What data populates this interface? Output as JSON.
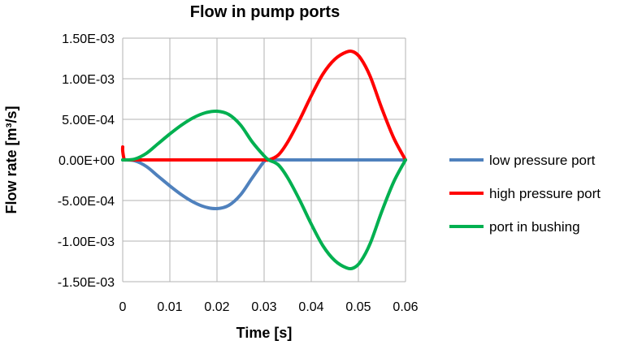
{
  "chart_data": {
    "type": "line",
    "title": "Flow in pump ports",
    "xlabel": "Time [s]",
    "ylabel": "Flow rate [m³/s]",
    "xlim": [
      0,
      0.06
    ],
    "ylim": [
      -0.0015,
      0.0015
    ],
    "x_ticks": [
      0,
      0.01,
      0.02,
      0.03,
      0.04,
      0.05,
      0.06
    ],
    "x_tick_labels": [
      "0",
      "0.01",
      "0.02",
      "0.03",
      "0.04",
      "0.05",
      "0.06"
    ],
    "y_ticks": [
      0.0015,
      0.001,
      0.0005,
      0,
      -0.0005,
      -0.001,
      -0.0015
    ],
    "y_tick_labels": [
      "1.50E-03",
      "1.00E-03",
      "5.00E-04",
      "0.00E+00",
      "-5.00E-04",
      "-1.00E-03",
      "-1.50E-03"
    ],
    "grid": true,
    "legend_position": "right",
    "series": [
      {
        "name": "low pressure port",
        "color": "#4f81bd",
        "x": [
          0,
          0.0025,
          0.005,
          0.0075,
          0.01,
          0.0125,
          0.015,
          0.0175,
          0.02,
          0.0225,
          0.025,
          0.0275,
          0.03,
          0.031,
          0.035,
          0.04,
          0.045,
          0.05,
          0.055,
          0.06
        ],
        "y": [
          0,
          -1e-05,
          -8e-05,
          -0.0002,
          -0.00032,
          -0.00043,
          -0.00052,
          -0.00058,
          -0.0006,
          -0.00056,
          -0.00043,
          -0.00022,
          -2e-05,
          0,
          0,
          0,
          0,
          0,
          0,
          0
        ]
      },
      {
        "name": "high pressure port",
        "color": "#ff0000",
        "x": [
          0,
          0,
          0.0003,
          0.0006,
          0.001,
          0.005,
          0.01,
          0.015,
          0.02,
          0.025,
          0.03,
          0.031,
          0.033,
          0.035,
          0.0375,
          0.04,
          0.0425,
          0.045,
          0.0475,
          0.049,
          0.0505,
          0.0525,
          0.055,
          0.0575,
          0.06
        ],
        "y": [
          0.00016,
          0.00011,
          1e-05,
          0,
          0,
          0,
          0,
          0,
          0,
          0,
          0,
          0,
          6e-05,
          0.00022,
          0.00049,
          0.00079,
          0.00106,
          0.00124,
          0.00133,
          0.00133,
          0.00125,
          0.00103,
          0.00063,
          0.00027,
          0
        ]
      },
      {
        "name": "port in bushing",
        "color": "#00b050",
        "x": [
          0,
          0.0025,
          0.005,
          0.0075,
          0.01,
          0.0125,
          0.015,
          0.0175,
          0.02,
          0.0225,
          0.025,
          0.0275,
          0.03,
          0.031,
          0.033,
          0.035,
          0.0375,
          0.04,
          0.0425,
          0.045,
          0.0475,
          0.049,
          0.0505,
          0.0525,
          0.055,
          0.0575,
          0.06
        ],
        "y": [
          0,
          1e-05,
          8e-05,
          0.0002,
          0.00032,
          0.00043,
          0.00052,
          0.00058,
          0.0006,
          0.00056,
          0.00043,
          0.00022,
          5e-05,
          0,
          -6e-05,
          -0.00022,
          -0.00049,
          -0.00079,
          -0.00106,
          -0.00124,
          -0.00133,
          -0.00133,
          -0.00125,
          -0.00103,
          -0.00063,
          -0.00027,
          0
        ]
      }
    ]
  }
}
